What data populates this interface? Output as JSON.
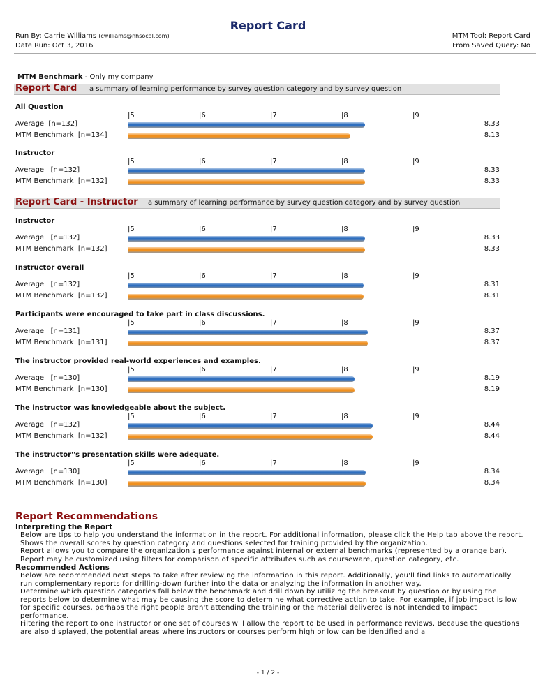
{
  "header": {
    "title": "Report Card",
    "run_by": "Run By: Carrie Williams",
    "email": "(cwilliams@nhsocal.com)",
    "date_run": "Date Run: Oct 3, 2016",
    "tool": "MTM Tool: Report Card",
    "query": "From Saved Query: No"
  },
  "benchmark": {
    "label": "MTM Benchmark",
    "note": "- Only my company"
  },
  "scale": {
    "xlim": [
      5,
      9
    ],
    "ticks": [
      {
        "value": 5,
        "label": "|5"
      },
      {
        "value": 6,
        "label": "|6"
      },
      {
        "value": 7,
        "label": "|7"
      },
      {
        "value": 8,
        "label": "|8"
      },
      {
        "value": 9,
        "label": "|9"
      }
    ],
    "colors": [
      "#2f6fbf",
      "#f0901e"
    ]
  },
  "sections": [
    {
      "title": "Report Card",
      "subtitle": "a summary of learning performance by survey question category and by survey question",
      "groups": [
        {
          "title": "All Question",
          "rows": [
            {
              "label": "Average  [n=132]",
              "value": 8.33
            },
            {
              "label": "MTM Benchmark  [n=134]",
              "value": 8.13
            }
          ]
        },
        {
          "title": "Instructor",
          "rows": [
            {
              "label": "Average   [n=132]",
              "value": 8.33
            },
            {
              "label": "MTM Benchmark  [n=132]",
              "value": 8.33
            }
          ]
        }
      ]
    },
    {
      "title": "Report Card - Instructor",
      "subtitle": "a summary of learning performance by survey question category and by survey question",
      "groups": [
        {
          "title": "Instructor",
          "rows": [
            {
              "label": "Average   [n=132]",
              "value": 8.33
            },
            {
              "label": "MTM Benchmark  [n=132]",
              "value": 8.33
            }
          ]
        },
        {
          "title": "Instructor overall",
          "rows": [
            {
              "label": "Average   [n=132]",
              "value": 8.31
            },
            {
              "label": "MTM Benchmark  [n=132]",
              "value": 8.31
            }
          ]
        },
        {
          "title": "Participants were encouraged to take part in class discussions.",
          "rows": [
            {
              "label": "Average   [n=131]",
              "value": 8.37
            },
            {
              "label": "MTM Benchmark  [n=131]",
              "value": 8.37
            }
          ]
        },
        {
          "title": "The instructor provided real-world experiences and examples.",
          "rows": [
            {
              "label": "Average   [n=130]",
              "value": 8.19
            },
            {
              "label": "MTM Benchmark  [n=130]",
              "value": 8.19
            }
          ]
        },
        {
          "title": "The instructor was knowledgeable about the subject.",
          "rows": [
            {
              "label": "Average   [n=132]",
              "value": 8.44
            },
            {
              "label": "MTM Benchmark  [n=132]",
              "value": 8.44
            }
          ]
        },
        {
          "title": "The instructor''s presentation skills were adequate.",
          "rows": [
            {
              "label": "Average   [n=130]",
              "value": 8.34
            },
            {
              "label": "MTM Benchmark  [n=130]",
              "value": 8.34
            }
          ]
        }
      ]
    }
  ],
  "recommendations": {
    "title": "Report Recommendations",
    "parts": [
      {
        "heading": "Interpreting the Report",
        "paragraphs": [
          "Below are tips to help you understand the information in the report. For additional information, please click the Help tab above the report.",
          "Shows the overall scores by question category and questions selected for training provided by the organization.",
          "Report allows you to compare the organization's performance against internal or external benchmarks (represented by a orange bar).",
          "Report may be customized using filters for comparison of specific attributes such as courseware, question category, etc."
        ]
      },
      {
        "heading": "Recommended Actions",
        "paragraphs": [
          "Below are recommended next steps to take after reviewing the information in this report. Additionally, you'll find links to automatically run complementary reports for drilling-down further into the data or analyzing the information in another way.",
          "Determine which question categories fall below the benchmark and drill down by utilizing the breakout by question or by using the reports below to determine what may be causing the score to determine what corrective action to take. For example, if job impact is low for specific courses, perhaps the right people aren't attending the training or the material delivered is not intended to impact performance.",
          "Filtering the report to one instructor or one set of courses will allow the report to be used in performance reviews. Because the questions are also displayed, the potential areas where instructors or courses perform high or low can be identified and a"
        ]
      }
    ]
  },
  "footer": "- 1 / 2 -"
}
